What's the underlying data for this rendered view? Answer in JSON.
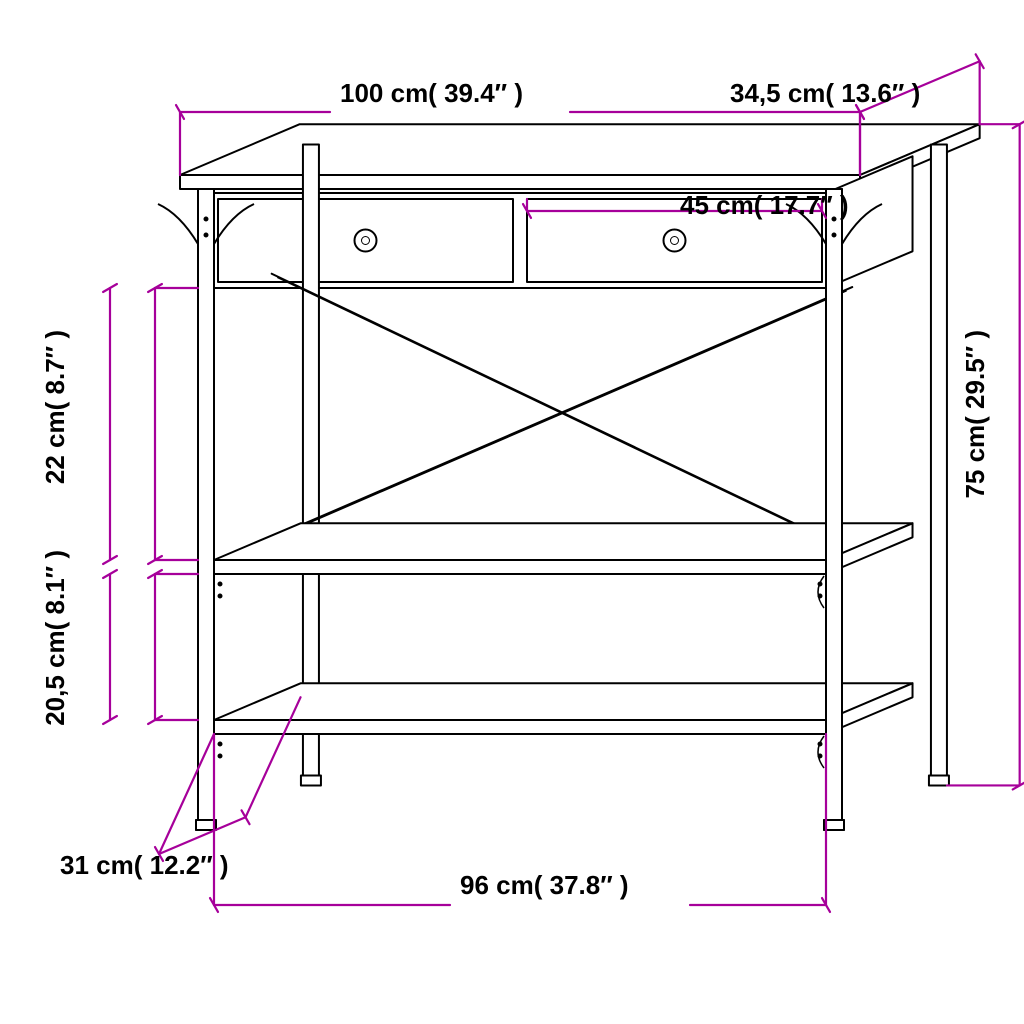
{
  "diagram": {
    "type": "technical-drawing",
    "stroke_color": "#000000",
    "dim_color": "#a6009a",
    "stroke_width_main": 2,
    "stroke_width_dim": 2.2,
    "background": "#ffffff",
    "label_fontsize": 26,
    "label_fontweight": "bold",
    "dimensions": {
      "top_width": "100 cm( 39.4″ )",
      "top_depth": "34,5 cm( 13.6″ )",
      "drawer_w": "45 cm( 17.7″ )",
      "height": "75 cm( 29.5″ )",
      "upper_gap": "22 cm( 8.7″ )",
      "lower_gap": "20,5 cm( 8.1″ )",
      "shelf_depth": "31 cm( 12.2″ )",
      "shelf_width": "96 cm( 37.8″ )"
    }
  }
}
